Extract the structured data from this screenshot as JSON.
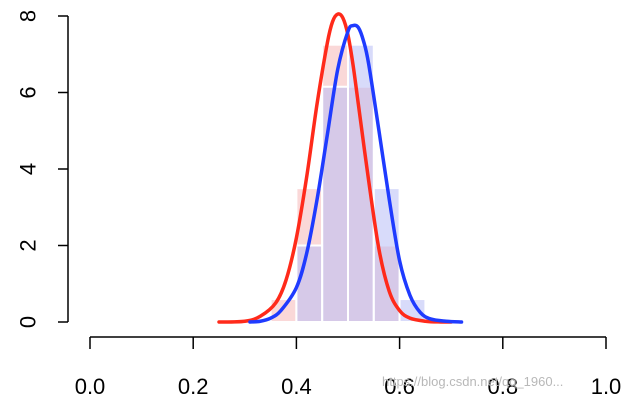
{
  "chart_data": {
    "type": "bar",
    "title": "",
    "xlabel": "",
    "ylabel": "",
    "xlim": [
      0.0,
      1.0
    ],
    "ylim": [
      0,
      8
    ],
    "grid": false,
    "x_ticks": [
      "0.0",
      "0.2",
      "0.4",
      "0.6",
      "0.8",
      "1.0"
    ],
    "y_ticks": [
      "0",
      "2",
      "4",
      "6",
      "8"
    ],
    "bins": [
      0.35,
      0.4,
      0.45,
      0.5,
      0.55,
      0.6,
      0.65
    ],
    "histograms": [
      {
        "color": "#f5b8b8",
        "opacity": 0.55,
        "values": [
          0.6,
          3.5,
          7.25,
          6.15,
          2.0,
          0.0
        ]
      },
      {
        "color": "#b8bef5",
        "opacity": 0.55,
        "values": [
          0.0,
          2.0,
          6.15,
          7.25,
          3.5,
          0.6
        ]
      }
    ],
    "series": [
      {
        "color": "#ff2a1a",
        "x": [
          0.25,
          0.3,
          0.33,
          0.36,
          0.38,
          0.4,
          0.42,
          0.44,
          0.46,
          0.47,
          0.48,
          0.49,
          0.5,
          0.51,
          0.52,
          0.54,
          0.56,
          0.58,
          0.6,
          0.62,
          0.65,
          0.68,
          0.7
        ],
        "y": [
          0.0,
          0.02,
          0.15,
          0.5,
          1.1,
          2.2,
          3.8,
          5.7,
          7.3,
          7.85,
          8.05,
          7.95,
          7.5,
          6.7,
          5.7,
          3.7,
          1.9,
          0.8,
          0.3,
          0.1,
          0.02,
          0.0,
          0.0
        ]
      },
      {
        "color": "#1f3bff",
        "x": [
          0.31,
          0.33,
          0.35,
          0.37,
          0.4,
          0.42,
          0.44,
          0.46,
          0.48,
          0.5,
          0.51,
          0.52,
          0.53,
          0.54,
          0.56,
          0.58,
          0.6,
          0.62,
          0.64,
          0.66,
          0.69,
          0.72
        ],
        "y": [
          0.0,
          0.02,
          0.1,
          0.3,
          0.9,
          1.8,
          3.2,
          4.9,
          6.6,
          7.6,
          7.75,
          7.7,
          7.35,
          6.75,
          5.0,
          3.2,
          1.6,
          0.7,
          0.25,
          0.08,
          0.02,
          0.0
        ]
      }
    ]
  },
  "watermark": "https://blog.csdn.net/qq_1960..."
}
